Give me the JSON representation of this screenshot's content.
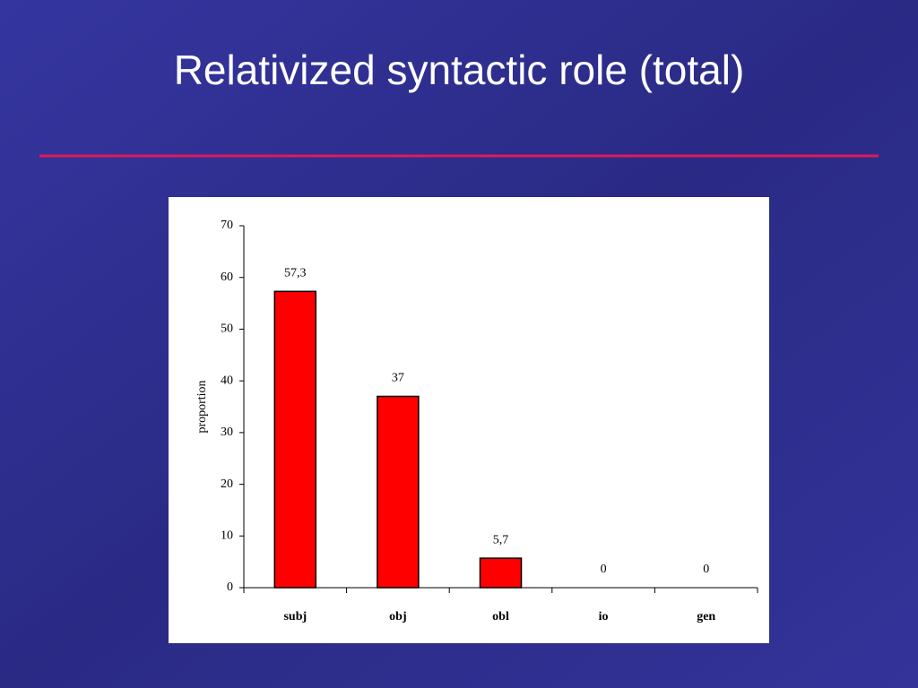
{
  "chart_data": {
    "type": "bar",
    "title": "Relativized syntactic role (total)",
    "y_label": "proportion",
    "categories": [
      "subj",
      "obj",
      "obl",
      "io",
      "gen"
    ],
    "values": [
      57.3,
      37,
      5.7,
      0,
      0
    ],
    "value_labels": [
      "57,3",
      "37",
      "5,7",
      "0",
      "0"
    ],
    "color": "#ff0000",
    "ylim": [
      0,
      70
    ],
    "yticks": [
      0,
      10,
      20,
      30,
      40,
      50,
      60,
      70
    ]
  }
}
